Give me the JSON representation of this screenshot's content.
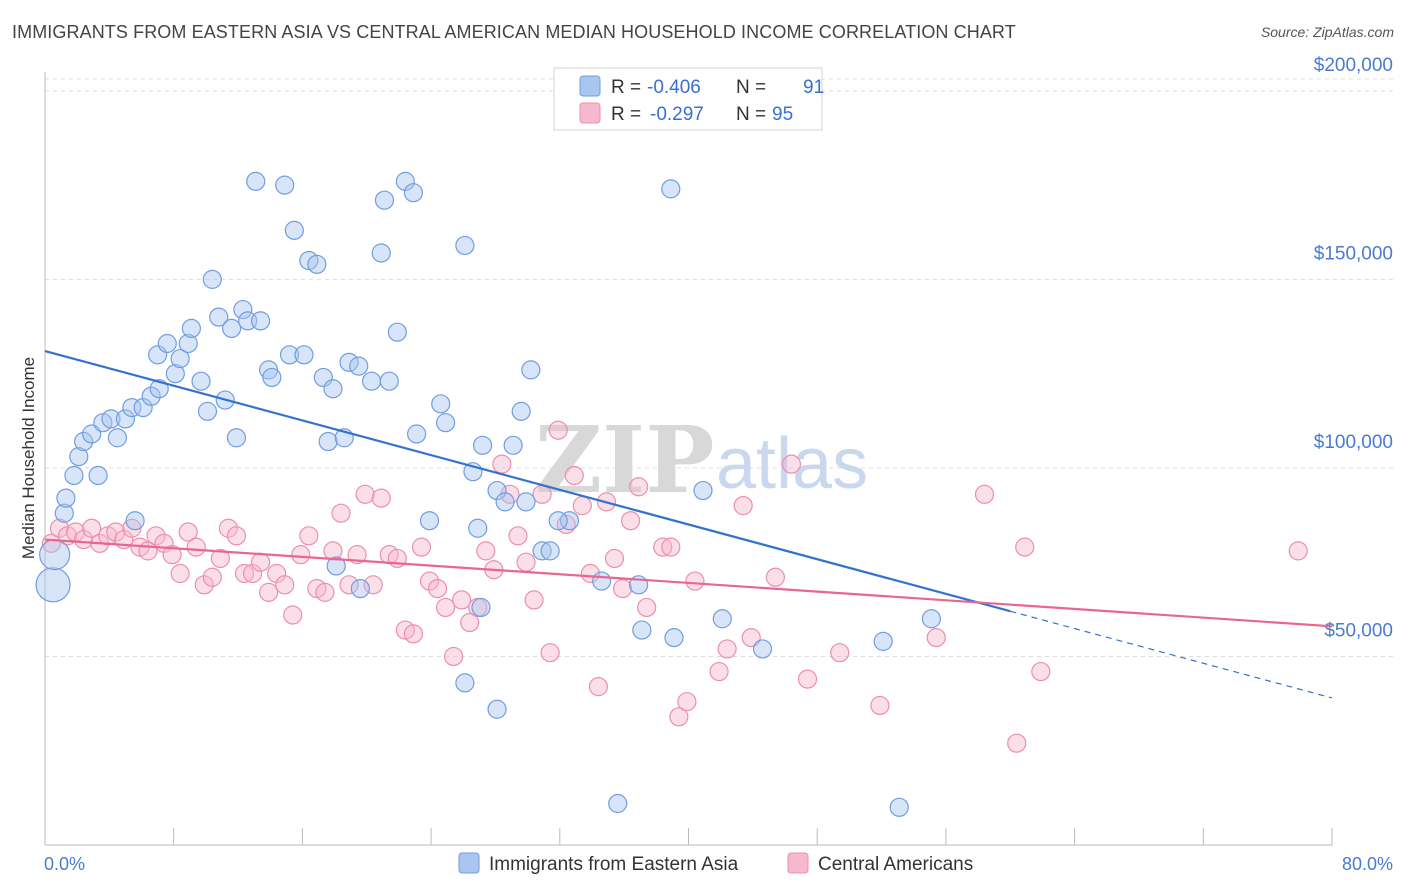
{
  "title": "IMMIGRANTS FROM EASTERN ASIA VS CENTRAL AMERICAN MEDIAN HOUSEHOLD INCOME CORRELATION CHART",
  "source": "Source: ZipAtlas.com",
  "watermark": {
    "zip": "ZIP",
    "atlas": "atlas"
  },
  "legend": {
    "r_label": "R =",
    "n_label": "N =",
    "rows": [
      {
        "r": "-0.406",
        "n": "91"
      },
      {
        "r": "-0.297",
        "n": "95"
      }
    ]
  },
  "colors": {
    "blue_fill": "#a9c6f0",
    "blue_stroke": "#6f9ee0",
    "blue_line": "#3373cc",
    "pink_fill": "#f6b9cc",
    "pink_stroke": "#ec8fad",
    "pink_line": "#e8668f",
    "grid": "#dddddd",
    "axis_text": "#4a7bd0"
  },
  "chart_data": {
    "type": "scatter",
    "title": "IMMIGRANTS FROM EASTERN ASIA VS CENTRAL AMERICAN MEDIAN HOUSEHOLD INCOME CORRELATION CHART",
    "xlabel": "",
    "ylabel": "Median Household Income",
    "xlim": [
      0,
      80
    ],
    "ylim": [
      0,
      205000
    ],
    "x_tick_labels": [
      "0.0%",
      "80.0%"
    ],
    "y_ticks": [
      50000,
      100000,
      150000,
      200000
    ],
    "y_tick_labels": [
      "$50,000",
      "$100,000",
      "$150,000",
      "$200,000"
    ],
    "grid": true,
    "legend_position": "top-center",
    "series": [
      {
        "name": "Immigrants from Eastern Asia",
        "color": "#a9c6f0",
        "trend": {
          "x": [
            0,
            60
          ],
          "y": [
            131000,
            62000
          ],
          "dashed_to": [
            80,
            39000
          ]
        },
        "points": [
          [
            0.5,
            69000
          ],
          [
            0.6,
            77000
          ],
          [
            1.2,
            88000
          ],
          [
            1.3,
            92000
          ],
          [
            1.8,
            98000
          ],
          [
            2.1,
            103000
          ],
          [
            2.4,
            107000
          ],
          [
            2.9,
            109000
          ],
          [
            3.3,
            98000
          ],
          [
            3.6,
            112000
          ],
          [
            4.1,
            113000
          ],
          [
            4.5,
            108000
          ],
          [
            5.0,
            113000
          ],
          [
            5.4,
            116000
          ],
          [
            5.6,
            86000
          ],
          [
            6.1,
            116000
          ],
          [
            6.6,
            119000
          ],
          [
            7.1,
            121000
          ],
          [
            7.0,
            130000
          ],
          [
            7.6,
            133000
          ],
          [
            8.1,
            125000
          ],
          [
            8.4,
            129000
          ],
          [
            8.9,
            133000
          ],
          [
            9.1,
            137000
          ],
          [
            9.7,
            123000
          ],
          [
            10.1,
            115000
          ],
          [
            10.4,
            150000
          ],
          [
            10.8,
            140000
          ],
          [
            11.2,
            118000
          ],
          [
            11.6,
            137000
          ],
          [
            11.9,
            108000
          ],
          [
            12.3,
            142000
          ],
          [
            12.6,
            139000
          ],
          [
            13.4,
            139000
          ],
          [
            13.1,
            176000
          ],
          [
            13.9,
            126000
          ],
          [
            14.1,
            124000
          ],
          [
            14.9,
            175000
          ],
          [
            15.2,
            130000
          ],
          [
            15.5,
            163000
          ],
          [
            16.1,
            130000
          ],
          [
            16.4,
            155000
          ],
          [
            16.9,
            154000
          ],
          [
            17.3,
            124000
          ],
          [
            17.6,
            107000
          ],
          [
            17.9,
            121000
          ],
          [
            18.6,
            108000
          ],
          [
            18.9,
            128000
          ],
          [
            19.5,
            127000
          ],
          [
            20.3,
            123000
          ],
          [
            20.9,
            157000
          ],
          [
            21.1,
            171000
          ],
          [
            21.4,
            123000
          ],
          [
            21.9,
            136000
          ],
          [
            22.4,
            176000
          ],
          [
            22.9,
            173000
          ],
          [
            23.1,
            109000
          ],
          [
            23.9,
            86000
          ],
          [
            24.6,
            117000
          ],
          [
            24.9,
            112000
          ],
          [
            26.1,
            159000
          ],
          [
            26.6,
            99000
          ],
          [
            26.9,
            84000
          ],
          [
            27.2,
            106000
          ],
          [
            28.1,
            94000
          ],
          [
            28.6,
            91000
          ],
          [
            29.1,
            106000
          ],
          [
            29.6,
            115000
          ],
          [
            30.2,
            126000
          ],
          [
            30.9,
            78000
          ],
          [
            31.4,
            78000
          ],
          [
            32.6,
            86000
          ],
          [
            36.9,
            69000
          ],
          [
            38.9,
            174000
          ],
          [
            40.9,
            94000
          ],
          [
            18.1,
            74000
          ],
          [
            19.6,
            68000
          ],
          [
            26.1,
            43000
          ],
          [
            27.1,
            63000
          ],
          [
            29.9,
            91000
          ],
          [
            31.9,
            86000
          ],
          [
            34.6,
            70000
          ],
          [
            37.1,
            57000
          ],
          [
            39.1,
            55000
          ],
          [
            42.1,
            60000
          ],
          [
            44.6,
            52000
          ],
          [
            28.1,
            36000
          ],
          [
            35.6,
            11000
          ],
          [
            52.1,
            54000
          ],
          [
            55.1,
            60000
          ],
          [
            53.1,
            10000
          ]
        ]
      },
      {
        "name": "Central Americans",
        "color": "#f6b9cc",
        "trend": {
          "x": [
            0,
            80
          ],
          "y": [
            81000,
            58000
          ]
        },
        "points": [
          [
            0.4,
            80000
          ],
          [
            0.9,
            84000
          ],
          [
            1.4,
            82000
          ],
          [
            1.9,
            83000
          ],
          [
            2.4,
            81000
          ],
          [
            2.9,
            84000
          ],
          [
            3.4,
            80000
          ],
          [
            3.9,
            82000
          ],
          [
            4.4,
            83000
          ],
          [
            4.9,
            81000
          ],
          [
            5.4,
            84000
          ],
          [
            5.9,
            79000
          ],
          [
            6.4,
            78000
          ],
          [
            6.9,
            82000
          ],
          [
            7.4,
            80000
          ],
          [
            7.9,
            77000
          ],
          [
            8.4,
            72000
          ],
          [
            8.9,
            83000
          ],
          [
            9.4,
            79000
          ],
          [
            9.9,
            69000
          ],
          [
            10.4,
            71000
          ],
          [
            10.9,
            76000
          ],
          [
            11.4,
            84000
          ],
          [
            11.9,
            82000
          ],
          [
            12.4,
            72000
          ],
          [
            12.9,
            72000
          ],
          [
            13.4,
            75000
          ],
          [
            13.9,
            67000
          ],
          [
            14.4,
            72000
          ],
          [
            14.9,
            69000
          ],
          [
            15.4,
            61000
          ],
          [
            15.9,
            77000
          ],
          [
            16.4,
            82000
          ],
          [
            16.9,
            68000
          ],
          [
            17.4,
            67000
          ],
          [
            17.9,
            78000
          ],
          [
            18.4,
            88000
          ],
          [
            18.9,
            69000
          ],
          [
            19.4,
            77000
          ],
          [
            19.9,
            93000
          ],
          [
            20.4,
            69000
          ],
          [
            20.9,
            92000
          ],
          [
            21.4,
            77000
          ],
          [
            21.9,
            76000
          ],
          [
            22.4,
            57000
          ],
          [
            22.9,
            56000
          ],
          [
            23.4,
            79000
          ],
          [
            23.9,
            70000
          ],
          [
            24.4,
            68000
          ],
          [
            24.9,
            63000
          ],
          [
            25.4,
            50000
          ],
          [
            25.9,
            65000
          ],
          [
            26.4,
            59000
          ],
          [
            26.9,
            63000
          ],
          [
            27.4,
            78000
          ],
          [
            27.9,
            73000
          ],
          [
            28.4,
            101000
          ],
          [
            28.9,
            93000
          ],
          [
            29.4,
            82000
          ],
          [
            29.9,
            75000
          ],
          [
            30.4,
            65000
          ],
          [
            30.9,
            93000
          ],
          [
            31.4,
            51000
          ],
          [
            31.9,
            110000
          ],
          [
            32.4,
            85000
          ],
          [
            32.9,
            98000
          ],
          [
            33.4,
            90000
          ],
          [
            33.9,
            72000
          ],
          [
            34.4,
            42000
          ],
          [
            34.9,
            91000
          ],
          [
            35.4,
            76000
          ],
          [
            35.9,
            68000
          ],
          [
            36.4,
            86000
          ],
          [
            36.9,
            95000
          ],
          [
            37.4,
            63000
          ],
          [
            38.4,
            79000
          ],
          [
            38.9,
            79000
          ],
          [
            39.4,
            34000
          ],
          [
            39.9,
            38000
          ],
          [
            40.4,
            70000
          ],
          [
            41.9,
            46000
          ],
          [
            42.4,
            52000
          ],
          [
            43.4,
            90000
          ],
          [
            43.9,
            55000
          ],
          [
            45.4,
            71000
          ],
          [
            46.4,
            101000
          ],
          [
            47.4,
            44000
          ],
          [
            49.4,
            51000
          ],
          [
            51.9,
            37000
          ],
          [
            55.4,
            55000
          ],
          [
            58.4,
            93000
          ],
          [
            60.4,
            27000
          ],
          [
            60.9,
            79000
          ],
          [
            61.9,
            46000
          ],
          [
            77.9,
            78000
          ]
        ]
      }
    ]
  },
  "bottom_legend": [
    {
      "label": "Immigrants from Eastern Asia"
    },
    {
      "label": "Central Americans"
    }
  ]
}
